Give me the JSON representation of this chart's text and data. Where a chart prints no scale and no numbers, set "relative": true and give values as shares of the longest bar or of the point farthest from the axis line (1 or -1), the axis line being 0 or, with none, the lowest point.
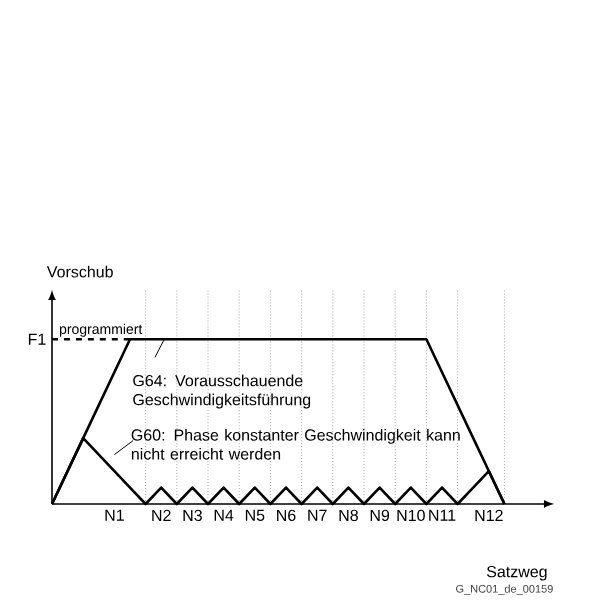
{
  "chart_data": {
    "type": "line",
    "relative": true,
    "ylabel": "Vorschub",
    "xlabel": "Satzweg",
    "categories": [
      null,
      null,
      null,
      null,
      "N1",
      null,
      null,
      "N2",
      null,
      "N3",
      null,
      "N4",
      null,
      "N5",
      null,
      "N6",
      null,
      "N7",
      null,
      "N8",
      null,
      "N9",
      null,
      "N10",
      null,
      "N11",
      null,
      null,
      "N12",
      null
    ],
    "series": [
      {
        "name": "programmiert",
        "color": "#000000",
        "line_style": "dashed",
        "values": [
          1,
          1,
          1,
          1,
          1,
          1,
          null,
          null,
          null,
          null,
          null,
          null,
          null,
          null,
          null,
          null,
          null,
          null,
          null,
          null,
          null,
          null,
          null,
          null,
          null,
          null,
          null,
          null,
          null,
          null
        ]
      },
      {
        "name": "G64: Vorausschauende Geschwindigkeitsführung",
        "color": "#000000",
        "values": [
          0,
          0.2,
          0.4,
          0.6,
          0.8,
          1,
          1,
          1,
          1,
          1,
          1,
          1,
          1,
          1,
          1,
          1,
          1,
          1,
          1,
          1,
          1,
          1,
          1,
          1,
          1,
          0.8,
          0.6,
          0.4,
          0.2,
          0
        ]
      },
      {
        "name": "G60: Phase konstanter Geschwindigkeit kann nicht erreicht werden",
        "color": "#000000",
        "values": [
          0,
          0.2,
          0.4,
          0.3,
          0.2,
          0.1,
          0,
          0.1,
          0,
          0.1,
          0,
          0.1,
          0,
          0.1,
          0,
          0.1,
          0,
          0.1,
          0,
          0.1,
          0,
          0.1,
          0,
          0.1,
          0,
          0.1,
          0,
          0.1,
          0.2,
          0
        ]
      }
    ],
    "annotations": [
      "F1",
      "G_NC01_de_00159"
    ],
    "line_style": "solid",
    "marker": "none",
    "grid": "x"
  }
}
